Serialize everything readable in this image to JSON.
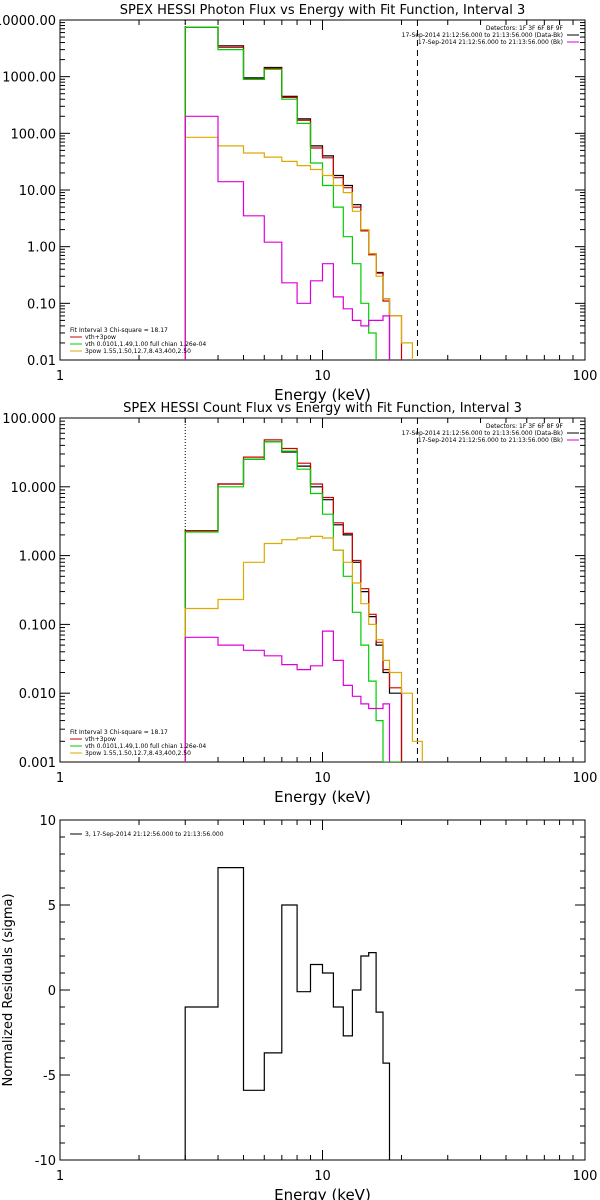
{
  "chart_data": [
    {
      "type": "line",
      "title": "SPEX HESSI Photon Flux vs Energy with Fit Function, Interval 3",
      "xlabel": "Energy (keV)",
      "ylabel": "",
      "xscale": "log",
      "yscale": "log",
      "xlim": [
        1,
        100
      ],
      "ylim": [
        0.01,
        10000
      ],
      "xticks": [
        1,
        10,
        100
      ],
      "xtick_labels": [
        "1",
        "10",
        "100"
      ],
      "yticks": [
        0.01,
        0.1,
        1,
        10,
        100,
        1000,
        10000
      ],
      "ytick_labels": [
        "0.01",
        "0.10",
        "1.00",
        "10.00",
        "100.00",
        "1000.00",
        "10000.00"
      ],
      "legend_top": [
        "Detectors: 1F 3F 6F 8F 9F",
        "17-Sep-2014 21:12:56.000 to 21:13:56.000 (Data-Bk)",
        "17-Sep-2014 21:12:56.000 to 21:13:56.000 (Bk)"
      ],
      "legend_fit": [
        "Fit Interval 3   Chi-square = 18.17",
        "vth+3pow",
        "vth 0.0101,1.49,1.00  full chian 1.26e-04",
        "3pow 1.55,1.50,12.7,8.43,400,2.50"
      ],
      "vlines": [
        {
          "x": 3,
          "style": "dotted"
        },
        {
          "x": 23,
          "style": "dashed"
        }
      ],
      "edges": [
        3,
        4,
        5,
        6,
        7,
        8,
        9,
        10,
        11,
        12,
        13,
        14,
        15,
        16,
        17,
        18,
        20,
        22,
        24,
        26,
        30
      ],
      "series": [
        {
          "name": "Data-Bk",
          "color": "#000000",
          "values": [
            7500,
            3500,
            950,
            1450,
            450,
            180,
            60,
            40,
            18,
            12,
            5.5,
            2.0,
            0.75,
            0.35,
            0.12,
            null,
            null,
            null,
            null,
            null
          ]
        },
        {
          "name": "vth+3pow",
          "color": "#cc0000",
          "values": [
            7500,
            3300,
            900,
            1400,
            430,
            170,
            55,
            37,
            16.5,
            11.0,
            5.0,
            1.9,
            0.72,
            0.34,
            0.11,
            0.06,
            null,
            null,
            null,
            null
          ]
        },
        {
          "name": "vth",
          "color": "#00cc00",
          "values": [
            7500,
            3000,
            900,
            1350,
            400,
            150,
            30,
            12,
            5.0,
            1.5,
            0.5,
            0.1,
            0.03,
            null,
            null,
            null,
            null,
            null,
            null,
            null
          ]
        },
        {
          "name": "3pow",
          "color": "#ddaa00",
          "values": [
            85,
            60,
            45,
            38,
            32,
            27,
            23,
            18,
            12,
            9,
            4.2,
            2.0,
            0.75,
            0.3,
            0.12,
            0.06,
            0.02,
            null,
            null,
            null
          ]
        },
        {
          "name": "Bk",
          "color": "#dd00dd",
          "values": [
            200,
            14,
            3.5,
            1.2,
            0.23,
            0.1,
            0.25,
            0.5,
            0.13,
            0.08,
            0.05,
            0.04,
            0.05,
            0.05,
            0.06,
            null,
            null,
            null,
            null,
            null
          ]
        }
      ]
    },
    {
      "type": "line",
      "title": "SPEX HESSI Count Flux vs Energy with Fit Function, Interval 3",
      "xlabel": "Energy (keV)",
      "ylabel": "",
      "xscale": "log",
      "yscale": "log",
      "xlim": [
        1,
        100
      ],
      "ylim": [
        0.001,
        100
      ],
      "xticks": [
        1,
        10,
        100
      ],
      "xtick_labels": [
        "1",
        "10",
        "100"
      ],
      "yticks": [
        0.001,
        0.01,
        0.1,
        1,
        10,
        100
      ],
      "ytick_labels": [
        "0.001",
        "0.010",
        "0.100",
        "1.000",
        "10.000",
        "100.000"
      ],
      "legend_top": [
        "Detectors: 1F 3F 6F 8F 9F",
        "17-Sep-2014 21:12:56.000 to 21:13:56.000 (Data-Bk)",
        "17-Sep-2014 21:12:56.000 to 21:13:56.000 (Bk)"
      ],
      "legend_fit": [
        "Fit Interval 3   Chi-square = 18.17",
        "vth+3pow",
        "vth 0.0101,1.49,1.00  full chian 1.26e-04",
        "3pow 1.55,1.50,12.7,8.43,400,2.50"
      ],
      "vlines": [
        {
          "x": 3,
          "style": "dotted"
        },
        {
          "x": 23,
          "style": "dashed"
        }
      ],
      "edges": [
        3,
        4,
        5,
        6,
        7,
        8,
        9,
        10,
        11,
        12,
        13,
        14,
        15,
        16,
        17,
        18,
        20,
        22,
        24,
        26,
        30
      ],
      "series": [
        {
          "name": "Data-Bk",
          "color": "#000000",
          "values": [
            2.3,
            11,
            25,
            45,
            32,
            20,
            10,
            6.5,
            2.8,
            2.0,
            0.8,
            0.3,
            0.13,
            0.05,
            0.02,
            0.01,
            null,
            null,
            null,
            null
          ]
        },
        {
          "name": "vth+3pow",
          "color": "#cc0000",
          "values": [
            2.3,
            11,
            27,
            48,
            36,
            22,
            11,
            7,
            3.0,
            2.1,
            0.85,
            0.33,
            0.14,
            0.055,
            0.022,
            0.012,
            null,
            null,
            null,
            null
          ]
        },
        {
          "name": "vth",
          "color": "#00cc00",
          "values": [
            2.2,
            10,
            25,
            45,
            33,
            18,
            8,
            4,
            1.2,
            0.5,
            0.15,
            0.05,
            0.015,
            0.004,
            0.001,
            0.0005,
            null,
            null,
            null,
            null
          ]
        },
        {
          "name": "3pow",
          "color": "#ddaa00",
          "values": [
            0.17,
            0.23,
            0.8,
            1.5,
            1.7,
            1.8,
            1.9,
            1.8,
            1.2,
            0.8,
            0.4,
            0.2,
            0.1,
            0.06,
            0.03,
            0.02,
            0.01,
            0.002,
            null,
            null
          ]
        },
        {
          "name": "Bk",
          "color": "#dd00dd",
          "values": [
            0.065,
            0.05,
            0.042,
            0.035,
            0.026,
            0.022,
            0.025,
            0.08,
            0.03,
            0.013,
            0.009,
            0.007,
            0.006,
            0.006,
            0.007,
            null,
            null,
            null,
            null,
            null
          ]
        }
      ]
    },
    {
      "type": "line",
      "title": "",
      "xlabel": "Energy (keV)",
      "ylabel": "Normalized Residuals (sigma)",
      "xscale": "log",
      "yscale": "linear",
      "xlim": [
        1,
        100
      ],
      "ylim": [
        -10,
        10
      ],
      "xticks": [
        1,
        10,
        100
      ],
      "xtick_labels": [
        "1",
        "10",
        "100"
      ],
      "yticks": [
        -10,
        -5,
        0,
        5,
        10
      ],
      "ytick_labels": [
        "-10",
        "-5",
        "0",
        "5",
        "10"
      ],
      "legend": [
        "3, 17-Sep-2014 21:12:56.000 to 21:13:56.000"
      ],
      "edges": [
        3,
        4,
        5,
        6,
        7,
        8,
        9,
        10,
        11,
        12,
        13,
        14,
        15,
        16,
        17,
        18,
        20,
        22,
        24
      ],
      "series": [
        {
          "name": "3, 17-Sep-2014 21:12:56.000 to 21:13:56.000",
          "color": "#000000",
          "values": [
            -1.0,
            7.2,
            -5.9,
            -3.7,
            5.0,
            -0.1,
            1.5,
            1.0,
            -1.0,
            -2.7,
            0.0,
            2.0,
            2.2,
            -1.3,
            -4.3,
            null,
            null,
            null
          ]
        }
      ]
    }
  ]
}
